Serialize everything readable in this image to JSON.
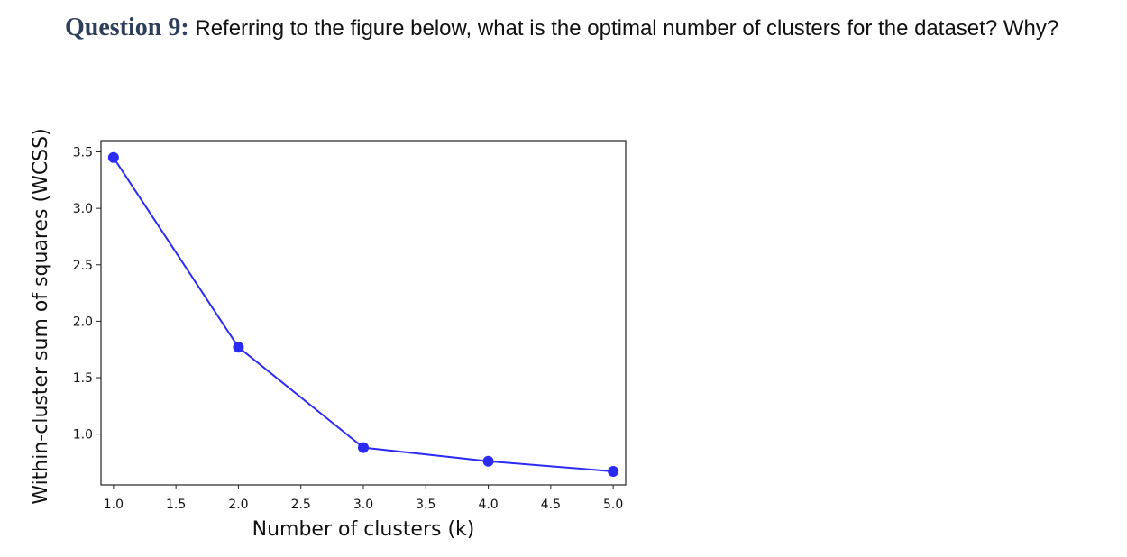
{
  "question": {
    "label": "Question 9:",
    "text": " Referring to the figure below, what is the optimal number of clusters for the dataset? Why?"
  },
  "chart_data": {
    "type": "line",
    "xlabel": "Number of clusters (k)",
    "ylabel": "Within-cluster sum of squares (WCSS)",
    "x": [
      1.0,
      2.0,
      3.0,
      4.0,
      5.0
    ],
    "series": [
      {
        "values": [
          3.45,
          1.77,
          0.88,
          0.76,
          0.67
        ]
      }
    ],
    "xlim": [
      0.9,
      5.1
    ],
    "ylim": [
      0.55,
      3.6
    ],
    "x_ticks": [
      "1.0",
      "1.5",
      "2.0",
      "2.5",
      "3.0",
      "3.5",
      "4.0",
      "4.5",
      "5.0"
    ],
    "y_ticks": [
      "1.0",
      "1.5",
      "2.0",
      "2.5",
      "3.0",
      "3.5"
    ],
    "grid": false,
    "color": "#2b2bf5"
  }
}
